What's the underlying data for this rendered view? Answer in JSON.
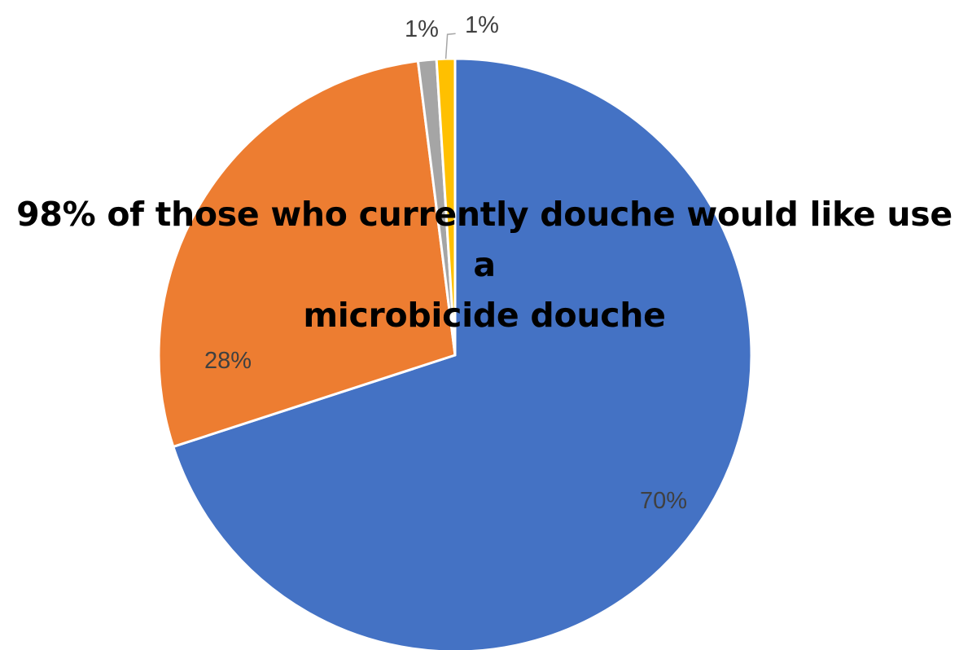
{
  "chart_data": {
    "type": "pie",
    "title": "",
    "subtitle": "",
    "slices": [
      {
        "value": 70,
        "label": "70%",
        "color": "#4472C4"
      },
      {
        "value": 28,
        "label": "28%",
        "color": "#ED7D31"
      },
      {
        "value": 1,
        "label": "1%",
        "color": "#A5A5A5"
      },
      {
        "value": 1,
        "label": "1%",
        "color": "#FFC000"
      }
    ],
    "legend": "none",
    "start_angle": "12 o'clock",
    "direction": "clockwise"
  },
  "overlay_text": {
    "line1": "98% of those who currently douche would like use a",
    "line2": "microbicide douche"
  }
}
